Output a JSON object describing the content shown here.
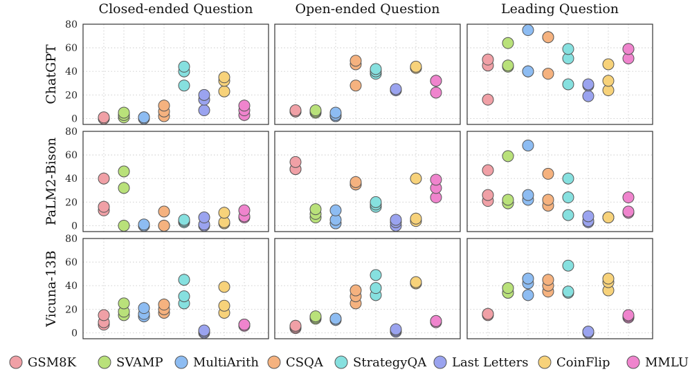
{
  "chart_data": {
    "type": "scatter",
    "columns": [
      "Closed-ended Question",
      "Open-ended Question",
      "Leading Question"
    ],
    "rows": [
      "ChatGPT",
      "PaLM2-Bison",
      "Vicuna-13B"
    ],
    "ylim": [
      -5,
      80
    ],
    "yticks": [
      0,
      20,
      40,
      60,
      80
    ],
    "grid": true,
    "legend_position": "bottom",
    "series": [
      {
        "name": "GSM8K",
        "color": "#f0a0a6"
      },
      {
        "name": "SVAMP",
        "color": "#b9e17a"
      },
      {
        "name": "MultiArith",
        "color": "#8dbcf2"
      },
      {
        "name": "CSQA",
        "color": "#f5b27f"
      },
      {
        "name": "StrategyQA",
        "color": "#86e0df"
      },
      {
        "name": "Last Letters",
        "color": "#9aa3ef"
      },
      {
        "name": "CoinFlip",
        "color": "#f7d27a"
      },
      {
        "name": "MMLU",
        "color": "#ef84cd"
      }
    ],
    "panels": [
      [
        [
          [
            0,
            1,
            0
          ],
          [
            5,
            3,
            1
          ],
          [
            0,
            1,
            1
          ],
          [
            11,
            6,
            2
          ],
          [
            44,
            40,
            28
          ],
          [
            20,
            16,
            7
          ],
          [
            35,
            32,
            23
          ],
          [
            11,
            7,
            3
          ]
        ],
        [
          [
            7,
            6,
            6
          ],
          [
            6,
            7,
            5
          ],
          [
            5,
            3,
            2
          ],
          [
            49,
            46,
            28
          ],
          [
            42,
            40,
            38
          ],
          [
            25,
            24,
            24
          ],
          [
            44,
            43,
            43
          ],
          [
            32,
            32,
            22
          ]
        ],
        [
          [
            50,
            45,
            16
          ],
          [
            64,
            45,
            44
          ],
          [
            75,
            40,
            40
          ],
          [
            69,
            69,
            38
          ],
          [
            59,
            51,
            29
          ],
          [
            28,
            29,
            19
          ],
          [
            46,
            32,
            24
          ],
          [
            59,
            59,
            51
          ]
        ]
      ],
      [
        [
          [
            40,
            16,
            13
          ],
          [
            46,
            32,
            0
          ],
          [
            0,
            0,
            1
          ],
          [
            12,
            0,
            0
          ],
          [
            5,
            3,
            4
          ],
          [
            7,
            1,
            0
          ],
          [
            11,
            3,
            2
          ],
          [
            13,
            8,
            7
          ]
        ],
        [
          [
            54,
            48,
            48
          ],
          [
            14,
            10,
            7
          ],
          [
            13,
            5,
            2
          ],
          [
            37,
            35,
            35
          ],
          [
            20,
            18,
            16
          ],
          [
            5,
            3,
            0
          ],
          [
            40,
            6,
            4
          ],
          [
            39,
            32,
            24
          ]
        ],
        [
          [
            47,
            26,
            21
          ],
          [
            59,
            22,
            19
          ],
          [
            68,
            26,
            22
          ],
          [
            44,
            22,
            17
          ],
          [
            40,
            24,
            9
          ],
          [
            8,
            4,
            3
          ],
          [
            7,
            7,
            7
          ],
          [
            24,
            12,
            11
          ]
        ]
      ],
      [
        [
          [
            15,
            9,
            7
          ],
          [
            25,
            18,
            15
          ],
          [
            21,
            16,
            14
          ],
          [
            24,
            20,
            17
          ],
          [
            45,
            31,
            25
          ],
          [
            2,
            1,
            0
          ],
          [
            39,
            23,
            17
          ],
          [
            7,
            7,
            6
          ]
        ],
        [
          [
            6,
            5,
            4
          ],
          [
            14,
            13,
            12
          ],
          [
            12,
            12,
            11
          ],
          [
            36,
            31,
            25
          ],
          [
            49,
            38,
            32
          ],
          [
            3,
            2,
            1
          ],
          [
            43,
            42,
            42
          ],
          [
            10,
            10,
            9
          ]
        ],
        [
          [
            16,
            16,
            15
          ],
          [
            38,
            34,
            34
          ],
          [
            46,
            42,
            32
          ],
          [
            45,
            40,
            35
          ],
          [
            57,
            35,
            34
          ],
          [
            1,
            1,
            0
          ],
          [
            46,
            43,
            36
          ],
          [
            15,
            14,
            13
          ]
        ]
      ]
    ]
  }
}
